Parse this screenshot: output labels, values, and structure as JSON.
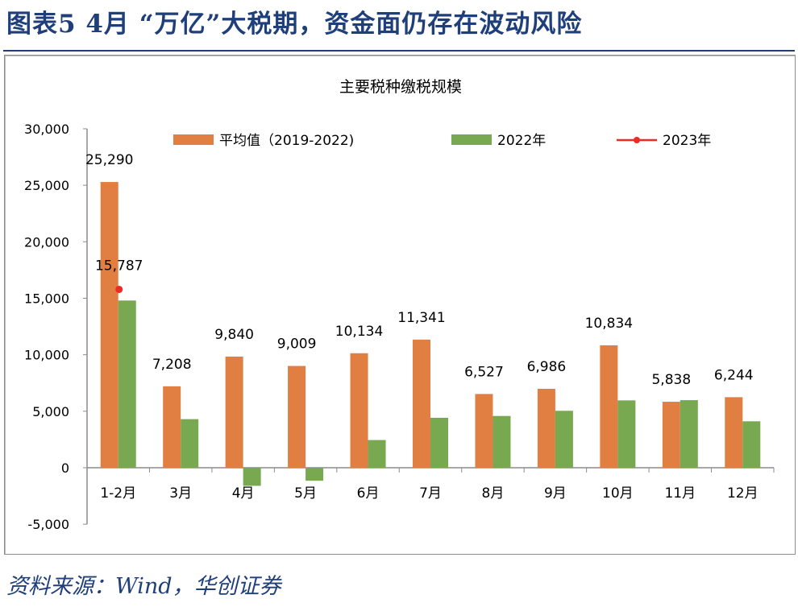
{
  "figure_title": "图表5 4月 “万亿”大税期，资金面仍存在波动风险",
  "source": "资料来源：Wind，华创证券",
  "chart_data": {
    "type": "bar",
    "title": "主要税种缴税规模",
    "xlabel": "",
    "ylabel": "",
    "ylim": [
      -5000,
      30000
    ],
    "yticks": [
      "-5,000",
      "0",
      "5,000",
      "10,000",
      "15,000",
      "20,000",
      "25,000",
      "30,000"
    ],
    "ytick_values": [
      -5000,
      0,
      5000,
      10000,
      15000,
      20000,
      25000,
      30000
    ],
    "grid": false,
    "legend_position": "top",
    "categories": [
      "1-2月",
      "3月",
      "4月",
      "5月",
      "6月",
      "7月",
      "8月",
      "9月",
      "10月",
      "11月",
      "12月"
    ],
    "series": [
      {
        "name": "平均值（2019-2022)",
        "type": "bar",
        "color": "#e07f41",
        "values": [
          25290,
          7208,
          9840,
          9009,
          10134,
          11341,
          6527,
          6986,
          10834,
          5838,
          6244
        ],
        "labels": [
          "25,290",
          "7,208",
          "9,840",
          "9,009",
          "10,134",
          "11,341",
          "6,527",
          "6,986",
          "10,834",
          "5,838",
          "6,244"
        ]
      },
      {
        "name": "2022年",
        "type": "bar",
        "color": "#78a84f",
        "values": [
          14800,
          4300,
          -1600,
          -1150,
          2450,
          4420,
          4580,
          5040,
          5960,
          5980,
          4110
        ]
      },
      {
        "name": "2023年",
        "type": "line-marker",
        "color": "#ee2a24",
        "values": [
          15787,
          null,
          null,
          null,
          null,
          null,
          null,
          null,
          null,
          null,
          null
        ],
        "labels": [
          "15,787"
        ]
      }
    ]
  }
}
